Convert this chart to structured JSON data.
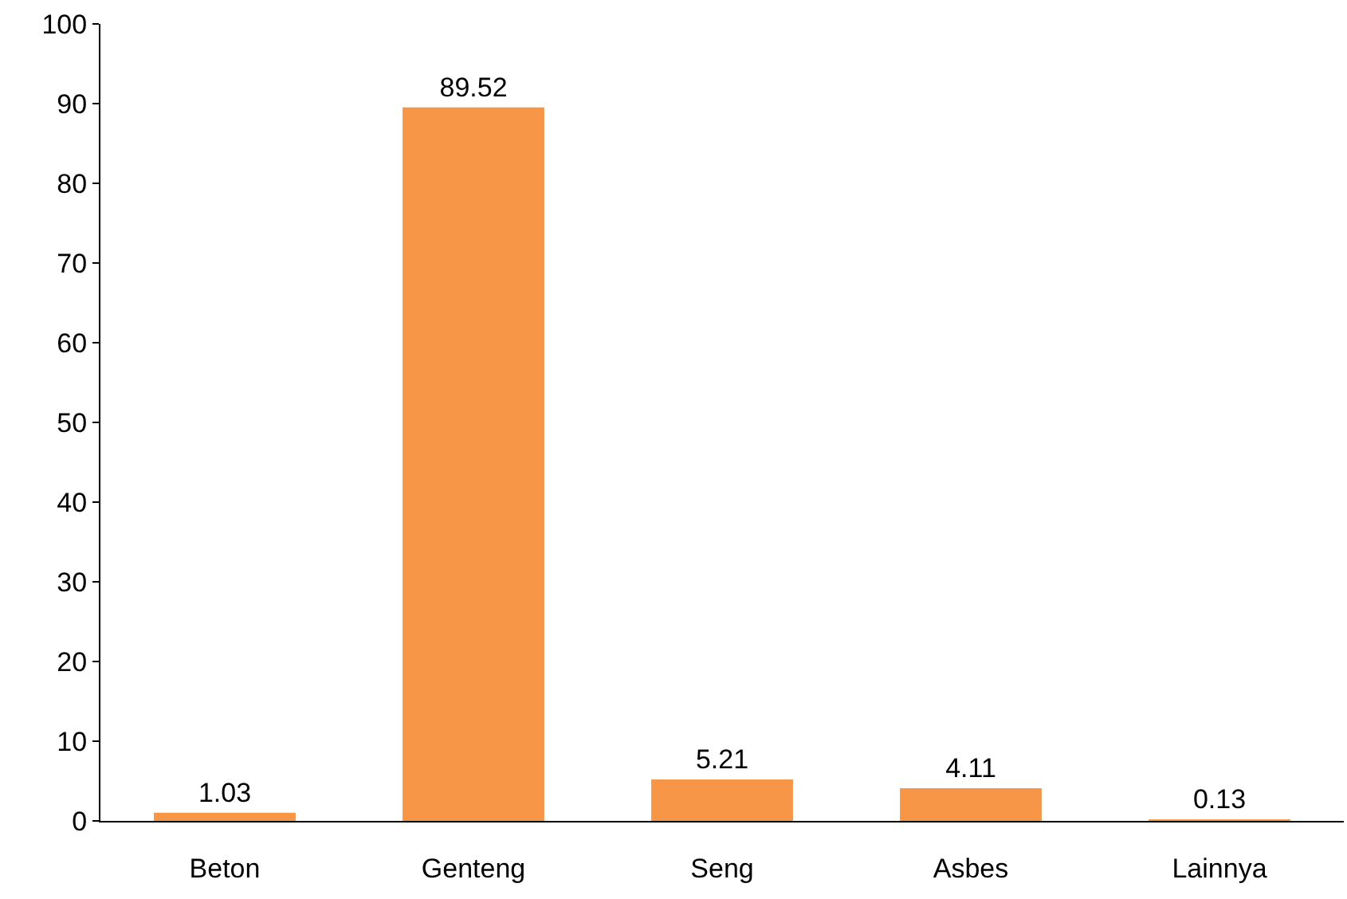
{
  "chart_data": {
    "type": "bar",
    "categories": [
      "Beton",
      "Genteng",
      "Seng",
      "Asbes",
      "Lainnya"
    ],
    "values": [
      1.03,
      89.52,
      5.21,
      4.11,
      0.13
    ],
    "color": "#f79646",
    "ylim": [
      0,
      100
    ],
    "yticks": [
      0,
      10,
      20,
      30,
      40,
      50,
      60,
      70,
      80,
      90,
      100
    ],
    "grid": false,
    "data_labels": true
  }
}
